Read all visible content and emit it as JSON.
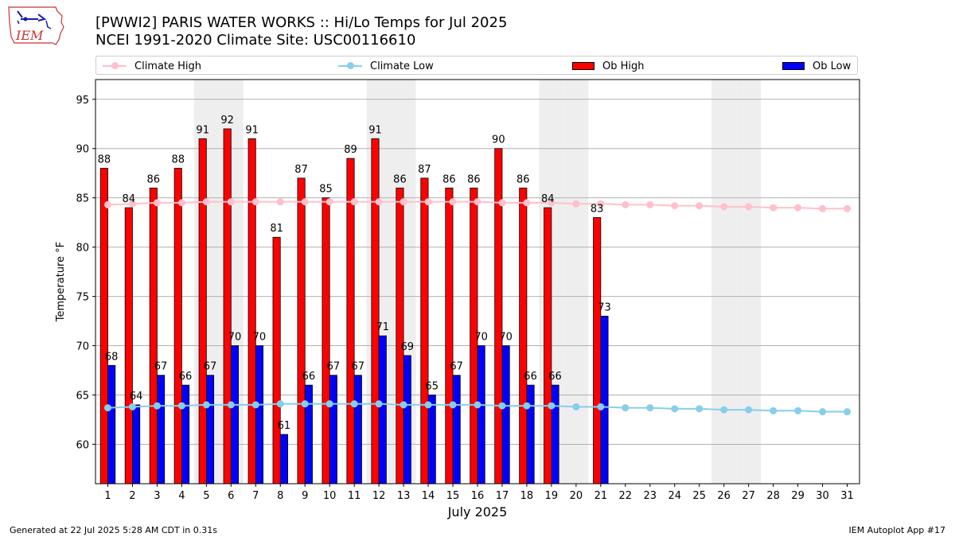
{
  "header": {
    "logo_text": "IEM",
    "title_line1": "[PWWI2] PARIS WATER WORKS :: Hi/Lo Temps for Jul 2025",
    "title_line2": "NCEI 1991-2020 Climate Site: USC00116610"
  },
  "legend": {
    "placement": "top, above plot",
    "items": [
      {
        "label": "Climate High",
        "kind": "line",
        "color": "#ffc0cb"
      },
      {
        "label": "Climate Low",
        "kind": "line",
        "color": "#87ceeb"
      },
      {
        "label": "Ob High",
        "kind": "bar",
        "color": "#ff0000"
      },
      {
        "label": "Ob Low",
        "kind": "bar",
        "color": "#0000ff"
      }
    ]
  },
  "chart_data": {
    "type": "bar",
    "title": "[PWWI2] PARIS WATER WORKS :: Hi/Lo Temps for Jul 2025",
    "subtitle": "NCEI 1991-2020 Climate Site: USC00116610",
    "xlabel": "July 2025",
    "ylabel": "Temperature °F",
    "ylabel_display": "Temperature $^\\circ$F",
    "ylim": [
      56,
      97
    ],
    "yticks": [
      60,
      65,
      70,
      75,
      80,
      85,
      90,
      95
    ],
    "grid": "horizontal",
    "categories": [
      "1",
      "2",
      "3",
      "4",
      "5",
      "6",
      "7",
      "8",
      "9",
      "10",
      "11",
      "12",
      "13",
      "14",
      "15",
      "16",
      "17",
      "18",
      "19",
      "20",
      "21",
      "22",
      "23",
      "24",
      "25",
      "26",
      "27",
      "28",
      "29",
      "30",
      "31"
    ],
    "weekend_shading_days": [
      5,
      6,
      12,
      13,
      19,
      20,
      26,
      27
    ],
    "series": [
      {
        "name": "Ob High",
        "kind": "bar",
        "color": "#ff0000",
        "values": [
          88,
          84,
          86,
          88,
          91,
          92,
          91,
          81,
          87,
          85,
          89,
          91,
          86,
          87,
          86,
          86,
          90,
          86,
          84,
          null,
          83,
          null,
          null,
          null,
          null,
          null,
          null,
          null,
          null,
          null,
          null
        ]
      },
      {
        "name": "Ob Low",
        "kind": "bar",
        "color": "#0000ff",
        "values": [
          68,
          64,
          67,
          66,
          67,
          70,
          70,
          61,
          66,
          67,
          67,
          71,
          69,
          65,
          67,
          70,
          70,
          66,
          66,
          null,
          73,
          null,
          null,
          null,
          null,
          null,
          null,
          null,
          null,
          null,
          null
        ]
      },
      {
        "name": "Climate High",
        "kind": "line",
        "color": "#ffc0cb",
        "values": [
          84.3,
          84.4,
          84.5,
          84.5,
          84.6,
          84.6,
          84.6,
          84.6,
          84.6,
          84.6,
          84.6,
          84.6,
          84.6,
          84.6,
          84.6,
          84.6,
          84.5,
          84.5,
          84.5,
          84.4,
          84.4,
          84.3,
          84.3,
          84.2,
          84.2,
          84.1,
          84.1,
          84.0,
          84.0,
          83.9,
          83.9
        ]
      },
      {
        "name": "Climate Low",
        "kind": "line",
        "color": "#87ceeb",
        "values": [
          63.7,
          63.8,
          63.9,
          63.9,
          64.0,
          64.0,
          64.0,
          64.1,
          64.1,
          64.1,
          64.1,
          64.1,
          64.0,
          64.0,
          64.0,
          64.0,
          63.9,
          63.9,
          63.9,
          63.8,
          63.8,
          63.7,
          63.7,
          63.6,
          63.6,
          63.5,
          63.5,
          63.4,
          63.4,
          63.3,
          63.3
        ]
      }
    ]
  },
  "footer": {
    "generated": "Generated at 22 Jul 2025 5:28 AM CDT in 0.31s",
    "app": "IEM Autoplot App #17"
  }
}
